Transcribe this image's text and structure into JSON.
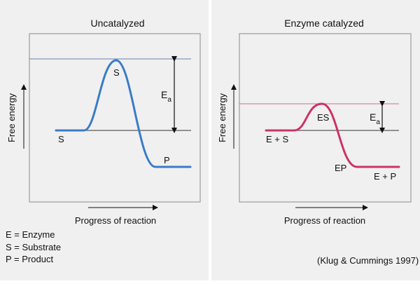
{
  "panels": [
    {
      "title": "Uncatalyzed",
      "y_label": "Free energy",
      "x_label": "Progress of reaction",
      "activation_label": "E",
      "activation_sub": "a",
      "curve_labels": {
        "start": "S",
        "peak": "S",
        "end": "P"
      },
      "curve_color": "#3a7bc8",
      "levels": {
        "start": 0.0,
        "peak": 1.0,
        "end": -0.52
      }
    },
    {
      "title": "Enzyme catalyzed",
      "y_label": "Free energy",
      "x_label": "Progress of reaction",
      "activation_label": "E",
      "activation_sub": "a",
      "curve_labels": {
        "start": "E + S",
        "peak": "ES",
        "intermediate": "EP",
        "end": "E + P"
      },
      "curve_color": "#cc3366",
      "levels": {
        "start": 0.0,
        "peak": 0.38,
        "end": -0.52
      }
    }
  ],
  "legend": [
    "E = Enzyme",
    "S = Substrate",
    "P = Product"
  ],
  "credit": "(Klug & Cummings 1997)",
  "colors": {
    "panel_background": "#f0f0f0",
    "border": "#8a8a8a",
    "guide_line_left": "#6a7fb0",
    "guide_line_right": "#d07090"
  }
}
